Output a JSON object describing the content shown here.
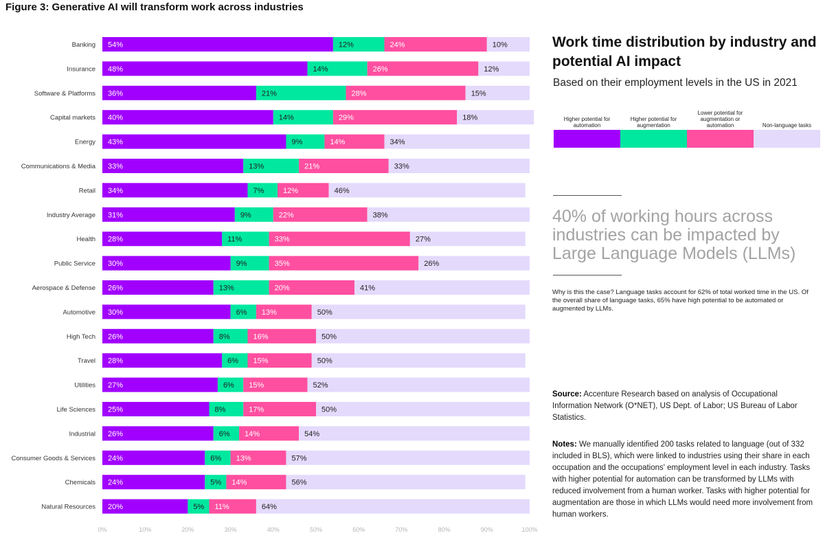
{
  "figure_title": "Figure 3: Generative AI will transform work across industries",
  "heading": "Work time distribution by industry and potential AI impact",
  "subheading": "Based on their employment levels in the US in 2021",
  "legend": [
    {
      "label": "Higher potential for automation",
      "color": "#a100ff"
    },
    {
      "label": "Higher potential for augmentation",
      "color": "#00e89f"
    },
    {
      "label": "Lower potential for augmentation or automation",
      "color": "#ff4fa0"
    },
    {
      "label": "Non-language tasks",
      "color": "#e4dafc"
    }
  ],
  "big_stat": "40% of working hours across industries can be impacted by Large Language Models (LLMs)",
  "why_text": "Why is this the case? Language tasks account for 62% of total worked time in the US. Of the overall share of language tasks, 65% have high potential to be automated or augmented by LLMs.",
  "source": {
    "label": "Source:",
    "text": "Accenture Research based on analysis of Occupational Information Network (O*NET), US Dept. of Labor; US Bureau of Labor Statistics."
  },
  "notes": {
    "label": "Notes:",
    "text": "We manually identified 200 tasks related to language (out of 332 included in BLS), which were linked to industries using their share in each occupation and the occupations' employment level in each industry. Tasks with higher potential for automation can be transformed by LLMs with reduced involvement from a human worker. Tasks with higher potential for augmentation are those in which LLMs would need more involvement from human workers."
  },
  "chart_data": {
    "type": "bar",
    "orientation": "horizontal",
    "stacked": true,
    "categories": [
      "Banking",
      "Insurance",
      "Software & Platforms",
      "Capital markets",
      "Energy",
      "Communications & Media",
      "Retail",
      "Industry Average",
      "Health",
      "Public Service",
      "Aerospace & Defense",
      "Automotive",
      "High Tech",
      "Travel",
      "Utilities",
      "Life Sciences",
      "Industrial",
      "Consumer Goods & Services",
      "Chemicals",
      "Natural Resources"
    ],
    "series": [
      {
        "name": "Higher potential for automation",
        "color": "#a100ff",
        "label_color": "#ffffff",
        "values": [
          54,
          48,
          36,
          40,
          43,
          33,
          34,
          31,
          28,
          30,
          26,
          30,
          26,
          28,
          27,
          25,
          26,
          24,
          24,
          20
        ]
      },
      {
        "name": "Higher potential for augmentation",
        "color": "#00e89f",
        "label_color": "#222222",
        "values": [
          12,
          14,
          21,
          14,
          9,
          13,
          7,
          9,
          11,
          9,
          13,
          6,
          8,
          6,
          6,
          8,
          6,
          6,
          5,
          5
        ]
      },
      {
        "name": "Lower potential for augmentation or automation",
        "color": "#ff4fa0",
        "label_color": "#ffffff",
        "values": [
          24,
          26,
          28,
          29,
          14,
          21,
          12,
          22,
          33,
          35,
          20,
          13,
          16,
          15,
          15,
          17,
          14,
          13,
          14,
          11
        ]
      },
      {
        "name": "Non-language tasks",
        "color": "#e4dafc",
        "label_color": "#222222",
        "values": [
          10,
          12,
          15,
          18,
          34,
          33,
          46,
          38,
          27,
          26,
          41,
          50,
          50,
          50,
          52,
          50,
          54,
          57,
          56,
          64
        ]
      }
    ],
    "xlim": [
      0,
      100
    ],
    "xticks": [
      "0%",
      "10%",
      "20%",
      "30%",
      "40%",
      "50%",
      "60%",
      "70%",
      "80%",
      "90%",
      "100%"
    ],
    "value_suffix": "%",
    "grid": false
  }
}
